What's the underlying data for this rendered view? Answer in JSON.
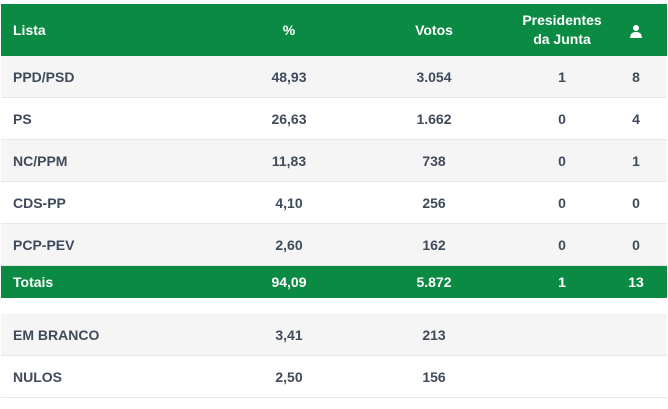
{
  "header": {
    "lista": "Lista",
    "percent": "%",
    "votos": "Votos",
    "presidentes_line1": "Presidentes",
    "presidentes_line2": "da Junta",
    "mandatos_icon": "person-icon"
  },
  "rows": [
    {
      "lista": "PPD/PSD",
      "percent": "48,93",
      "votos": "3.054",
      "presidentes": "1",
      "mandatos": "8"
    },
    {
      "lista": "PS",
      "percent": "26,63",
      "votos": "1.662",
      "presidentes": "0",
      "mandatos": "4"
    },
    {
      "lista": "NC/PPM",
      "percent": "11,83",
      "votos": "738",
      "presidentes": "0",
      "mandatos": "1"
    },
    {
      "lista": "CDS-PP",
      "percent": "4,10",
      "votos": "256",
      "presidentes": "0",
      "mandatos": "0"
    },
    {
      "lista": "PCP-PEV",
      "percent": "2,60",
      "votos": "162",
      "presidentes": "0",
      "mandatos": "0"
    }
  ],
  "totals": {
    "lista": "Totais",
    "percent": "94,09",
    "votos": "5.872",
    "presidentes": "1",
    "mandatos": "13"
  },
  "extra": [
    {
      "lista": "EM BRANCO",
      "percent": "3,41",
      "votos": "213"
    },
    {
      "lista": "NULOS",
      "percent": "2,50",
      "votos": "156"
    }
  ],
  "colors": {
    "accent": "#0b8a44",
    "text": "#3f4a5a",
    "row_alt": "#f5f5f5"
  }
}
